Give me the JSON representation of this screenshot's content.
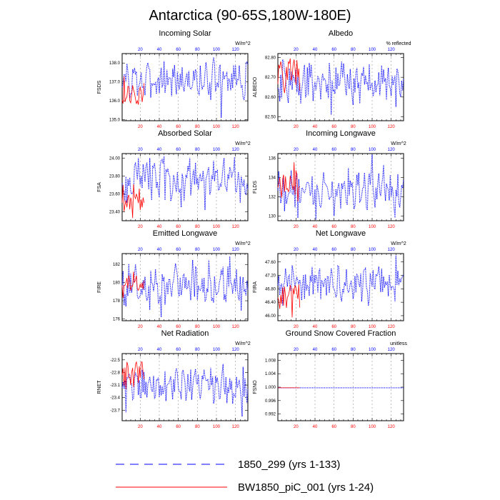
{
  "title": "Antarctica (90-65S,180W-180E)",
  "colors": {
    "run1": "#0000ff",
    "run2": "#ff0000"
  },
  "legend": [
    {
      "label": "1850_299 (yrs 1-133)",
      "color": "#0000ff",
      "style": "dashed"
    },
    {
      "label": "BW1850_piC_001 (yrs 1-24)",
      "color": "#ff0000",
      "style": "solid"
    }
  ],
  "chart_data": [
    {
      "type": "line",
      "title": "Incoming Solar",
      "units": "W/m^2",
      "ylabel": "FSDS",
      "ylim": [
        134.95,
        138.5
      ],
      "yticks": [
        "135.0",
        "136.0",
        "137.0",
        "138.0"
      ],
      "ytick_values": [
        135.0,
        136.0,
        137.0,
        138.0
      ],
      "xlim": [
        1,
        133
      ],
      "xticks_bottom": [
        20,
        40,
        60,
        80,
        100,
        120
      ],
      "xticks_top": [
        20,
        40,
        60,
        80,
        100,
        120
      ],
      "series": [
        {
          "name": "1850_299 (yrs 1-133)",
          "x_start": 1,
          "base": 137.1,
          "amp": 0.5,
          "min": 135.1,
          "max": 138.4,
          "peaks": [
            [
              10,
              136.4
            ],
            [
              25,
              136.3
            ],
            [
              45,
              138.1
            ],
            [
              66,
              136.5
            ],
            [
              82,
              136.3
            ],
            [
              97,
              138.3
            ],
            [
              105,
              135.1
            ],
            [
              120,
              137.9
            ]
          ]
        },
        {
          "name": "BW1850_piC_001 (yrs 1-24)",
          "x_start": 1,
          "base": 136.5,
          "amp": 0.4,
          "min": 135.8,
          "max": 137.5,
          "peaks": [
            [
              3,
              137.3
            ],
            [
              9,
              136.0
            ],
            [
              14,
              136.4
            ],
            [
              18,
              135.8
            ],
            [
              23,
              136.3
            ]
          ]
        }
      ]
    },
    {
      "type": "line",
      "title": "Albedo",
      "units": "% reflected",
      "ylabel": "ALBEDO",
      "ylim": [
        82.48,
        82.82
      ],
      "yticks": [
        "82.50",
        "82.60",
        "82.70",
        "82.80"
      ],
      "ytick_values": [
        82.5,
        82.6,
        82.7,
        82.8
      ],
      "xlim": [
        1,
        133
      ],
      "xticks_bottom": [
        20,
        40,
        60,
        80,
        100,
        120
      ],
      "xticks_top": [
        20,
        40,
        60,
        80,
        100,
        120
      ],
      "series": [
        {
          "name": "1850_299 (yrs 1-133)",
          "x_start": 1,
          "base": 82.67,
          "amp": 0.05,
          "min": 82.49,
          "max": 82.8,
          "peaks": [
            [
              6,
              82.79
            ],
            [
              12,
              82.57
            ],
            [
              32,
              82.75
            ],
            [
              57,
              82.51
            ],
            [
              68,
              82.78
            ],
            [
              80,
              82.56
            ],
            [
              110,
              82.76
            ],
            [
              125,
              82.55
            ]
          ]
        },
        {
          "name": "BW1850_piC_001 (yrs 1-24)",
          "x_start": 1,
          "base": 82.71,
          "amp": 0.05,
          "min": 82.6,
          "max": 82.81,
          "peaks": [
            [
              4,
              82.78
            ],
            [
              8,
              82.62
            ],
            [
              13,
              82.77
            ],
            [
              18,
              82.79
            ],
            [
              22,
              82.7
            ]
          ]
        }
      ]
    },
    {
      "type": "line",
      "title": "Absorbed Solar",
      "units": "W/m^2",
      "ylabel": "FSA",
      "ylim": [
        23.3,
        24.05
      ],
      "yticks": [
        "23.40",
        "23.60",
        "23.80",
        "24.00"
      ],
      "ytick_values": [
        23.4,
        23.6,
        23.8,
        24.0
      ],
      "xlim": [
        1,
        133
      ],
      "xticks_bottom": [
        20,
        40,
        60,
        80,
        100,
        120
      ],
      "xticks_top": [
        20,
        40,
        60,
        80,
        100,
        120
      ],
      "series": [
        {
          "name": "1850_299 (yrs 1-133)",
          "x_start": 1,
          "base": 23.75,
          "amp": 0.12,
          "min": 23.42,
          "max": 24.05,
          "peaks": [
            [
              6,
              23.5
            ],
            [
              18,
              24.0
            ],
            [
              30,
              24.0
            ],
            [
              45,
              24.02
            ],
            [
              63,
              23.45
            ],
            [
              72,
              24.0
            ],
            [
              88,
              23.42
            ],
            [
              108,
              24.0
            ],
            [
              125,
              23.5
            ]
          ]
        },
        {
          "name": "BW1850_piC_001 (yrs 1-24)",
          "x_start": 1,
          "base": 23.55,
          "amp": 0.08,
          "min": 23.33,
          "max": 23.72,
          "peaks": [
            [
              2,
              23.7
            ],
            [
              6,
              23.45
            ],
            [
              12,
              23.33
            ],
            [
              16,
              23.6
            ],
            [
              20,
              23.42
            ],
            [
              24,
              23.5
            ]
          ]
        }
      ]
    },
    {
      "type": "line",
      "title": "Incoming Longwave",
      "units": "W/m^2",
      "ylabel": "FLDS",
      "ylim": [
        129.5,
        136.5
      ],
      "yticks": [
        "130",
        "132",
        "134",
        "136"
      ],
      "ytick_values": [
        130,
        132,
        134,
        136
      ],
      "xlim": [
        1,
        133
      ],
      "xticks_bottom": [
        20,
        40,
        60,
        80,
        100,
        120
      ],
      "xticks_top": [
        20,
        40,
        60,
        80,
        100,
        120
      ],
      "series": [
        {
          "name": "1850_299 (yrs 1-133)",
          "x_start": 1,
          "base": 132.8,
          "amp": 1.0,
          "min": 129.6,
          "max": 136.4,
          "peaks": [
            [
              8,
              130.5
            ],
            [
              22,
              129.8
            ],
            [
              41,
              129.6
            ],
            [
              60,
              130.0
            ],
            [
              75,
              135.0
            ],
            [
              92,
              134.5
            ],
            [
              100,
              136.4
            ],
            [
              112,
              135.3
            ],
            [
              124,
              129.8
            ]
          ]
        },
        {
          "name": "BW1850_piC_001 (yrs 1-24)",
          "x_start": 1,
          "base": 133.2,
          "amp": 0.8,
          "min": 131.5,
          "max": 135.6,
          "peaks": [
            [
              3,
              134.0
            ],
            [
              8,
              132.5
            ],
            [
              14,
              134.2
            ],
            [
              18,
              135.6
            ],
            [
              22,
              131.5
            ]
          ]
        }
      ]
    },
    {
      "type": "line",
      "title": "Emitted Longwave",
      "units": "W/m^2",
      "ylabel": "FIRE",
      "ylim": [
        175.8,
        183.2
      ],
      "yticks": [
        "176",
        "178",
        "180",
        "182"
      ],
      "ytick_values": [
        176,
        178,
        180,
        182
      ],
      "xlim": [
        1,
        133
      ],
      "xticks_bottom": [
        20,
        40,
        60,
        80,
        100,
        120
      ],
      "xticks_top": [
        20,
        40,
        60,
        80,
        100,
        120
      ],
      "series": [
        {
          "name": "1850_299 (yrs 1-133)",
          "x_start": 1,
          "base": 179.7,
          "amp": 1.1,
          "min": 176.2,
          "max": 182.9,
          "peaks": [
            [
              3,
              177.5
            ],
            [
              15,
              182.0
            ],
            [
              30,
              177.0
            ],
            [
              42,
              176.2
            ],
            [
              58,
              181.5
            ],
            [
              75,
              182.5
            ],
            [
              92,
              182.5
            ],
            [
              114,
              182.9
            ],
            [
              126,
              176.9
            ]
          ]
        },
        {
          "name": "BW1850_piC_001 (yrs 1-24)",
          "x_start": 1,
          "base": 179.8,
          "amp": 0.6,
          "min": 178.3,
          "max": 181.2,
          "peaks": [
            [
              2,
              178.3
            ],
            [
              8,
              180.8
            ],
            [
              13,
              181.2
            ],
            [
              17,
              179.3
            ],
            [
              22,
              180.0
            ]
          ]
        }
      ]
    },
    {
      "type": "line",
      "title": "Net Longwave",
      "units": "W/m^2",
      "ylabel": "FIRA",
      "ylim": [
        45.85,
        47.85
      ],
      "yticks": [
        "46.00",
        "46.40",
        "46.80",
        "47.20",
        "47.60"
      ],
      "ytick_values": [
        46.0,
        46.4,
        46.8,
        47.2,
        47.6
      ],
      "xlim": [
        1,
        133
      ],
      "xticks_bottom": [
        20,
        40,
        60,
        80,
        100,
        120
      ],
      "xticks_top": [
        20,
        40,
        60,
        80,
        100,
        120
      ],
      "series": [
        {
          "name": "1850_299 (yrs 1-133)",
          "x_start": 1,
          "base": 46.95,
          "amp": 0.25,
          "min": 46.1,
          "max": 47.8,
          "peaks": [
            [
              6,
              46.3
            ],
            [
              16,
              47.5
            ],
            [
              29,
              46.5
            ],
            [
              45,
              47.4
            ],
            [
              65,
              47.45
            ],
            [
              80,
              46.5
            ],
            [
              96,
              46.3
            ],
            [
              110,
              47.4
            ],
            [
              125,
              47.8
            ]
          ]
        },
        {
          "name": "BW1850_piC_001 (yrs 1-24)",
          "x_start": 1,
          "base": 46.55,
          "amp": 0.2,
          "min": 45.95,
          "max": 47.0,
          "peaks": [
            [
              3,
              46.2
            ],
            [
              7,
              46.3
            ],
            [
              12,
              46.6
            ],
            [
              16,
              45.95
            ],
            [
              19,
              46.9
            ],
            [
              22,
              46.5
            ]
          ]
        }
      ]
    },
    {
      "type": "line",
      "title": "Net Radiation",
      "units": "W/m^2",
      "ylabel": "RNET",
      "ylim": [
        -23.95,
        -22.35
      ],
      "yticks": [
        "-23.7",
        "-23.4",
        "-23.1",
        "-22.8",
        "-22.5"
      ],
      "ytick_values": [
        -23.7,
        -23.4,
        -23.1,
        -22.8,
        -22.5
      ],
      "xlim": [
        1,
        133
      ],
      "xticks_bottom": [
        20,
        40,
        60,
        80,
        100,
        120
      ],
      "xticks_top": [
        20,
        40,
        60,
        80,
        100,
        120
      ],
      "series": [
        {
          "name": "1850_299 (yrs 1-133)",
          "x_start": 1,
          "base": -23.1,
          "amp": 0.22,
          "min": -23.85,
          "max": -22.55,
          "peaks": [
            [
              5,
              -23.75
            ],
            [
              15,
              -22.8
            ],
            [
              30,
              -22.9
            ],
            [
              42,
              -23.35
            ],
            [
              58,
              -22.7
            ],
            [
              72,
              -23.25
            ],
            [
              90,
              -23.0
            ],
            [
              107,
              -22.6
            ],
            [
              120,
              -23.4
            ],
            [
              127,
              -23.85
            ]
          ]
        },
        {
          "name": "BW1850_piC_001 (yrs 1-24)",
          "x_start": 1,
          "base": -22.85,
          "amp": 0.18,
          "min": -23.2,
          "max": -22.55,
          "peaks": [
            [
              2,
              -22.7
            ],
            [
              6,
              -22.55
            ],
            [
              10,
              -23.1
            ],
            [
              15,
              -22.6
            ],
            [
              19,
              -22.65
            ],
            [
              23,
              -22.8
            ]
          ]
        }
      ]
    },
    {
      "type": "line",
      "title": "Ground Snow Covered Fraction",
      "units": "unitless",
      "ylabel": "FSNO",
      "ylim": [
        0.99,
        1.01
      ],
      "yticks": [
        "0.992",
        "0.996",
        "1.000",
        "1.004",
        "1.008"
      ],
      "ytick_values": [
        0.992,
        0.996,
        1.0,
        1.004,
        1.008
      ],
      "xlim": [
        1,
        133
      ],
      "xticks_bottom": [
        20,
        40,
        60,
        80,
        100,
        120
      ],
      "xticks_top": [
        20,
        40,
        60,
        80,
        100,
        120
      ],
      "series": [
        {
          "name": "1850_299 (yrs 1-133)",
          "x_start": 1,
          "base": 0.9998,
          "amp": 0,
          "min": 0.9998,
          "max": 0.9998,
          "peaks": []
        },
        {
          "name": "BW1850_piC_001 (yrs 1-24)",
          "x_start": 1,
          "base": 0.9998,
          "amp": 0,
          "min": 0.9998,
          "max": 0.9998,
          "peaks": []
        }
      ]
    }
  ]
}
